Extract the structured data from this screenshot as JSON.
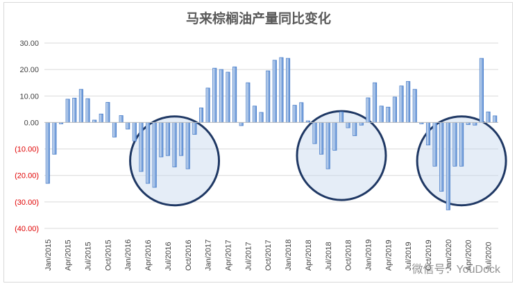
{
  "chart_data": {
    "type": "bar",
    "title": "马来棕榈油产量同比变化",
    "ylim": [
      -40,
      30
    ],
    "yticks": [
      30,
      20,
      10,
      0,
      -10,
      -20,
      -30,
      -40
    ],
    "ytick_labels": [
      "30.00",
      "20.00",
      "10.00",
      "0.00",
      "(10.00)",
      "(20.00)",
      "(30.00)",
      "(40.00)"
    ],
    "x_tick_labels": [
      "Jan/2015",
      "Apr/2015",
      "Jul/2015",
      "Oct/2015",
      "Jan/2016",
      "Apr/2016",
      "Jul/2016",
      "Oct/2016",
      "Jan/2017",
      "Apr/2017",
      "Jul/2017",
      "Oct/2017",
      "Jan/2018",
      "Apr/2018",
      "Jul/2018",
      "Oct/2018",
      "Jan/2019",
      "Apr/2019",
      "Jul/2019",
      "Oct/2019",
      "Jan/2020",
      "Apr/2020",
      "Jul/2020"
    ],
    "grid": true,
    "legend": "none",
    "series": [
      {
        "x": [
          "Jan/2015",
          "Feb/2015",
          "Mar/2015",
          "Apr/2015",
          "May/2015",
          "Jun/2015",
          "Jul/2015",
          "Aug/2015",
          "Sep/2015",
          "Oct/2015",
          "Nov/2015",
          "Dec/2015",
          "Jan/2016",
          "Feb/2016",
          "Mar/2016",
          "Apr/2016",
          "May/2016",
          "Jun/2016",
          "Jul/2016",
          "Aug/2016",
          "Sep/2016",
          "Oct/2016",
          "Nov/2016",
          "Dec/2016",
          "Jan/2017",
          "Feb/2017",
          "Mar/2017",
          "Apr/2017",
          "May/2017",
          "Jun/2017",
          "Jul/2017",
          "Aug/2017",
          "Sep/2017",
          "Oct/2017",
          "Nov/2017",
          "Dec/2017",
          "Jan/2018",
          "Feb/2018",
          "Mar/2018",
          "Apr/2018",
          "May/2018",
          "Jun/2018",
          "Jul/2018",
          "Aug/2018",
          "Sep/2018",
          "Oct/2018",
          "Nov/2018",
          "Dec/2018",
          "Jan/2019",
          "Feb/2019",
          "Mar/2019",
          "Apr/2019",
          "May/2019",
          "Jun/2019",
          "Jul/2019",
          "Aug/2019",
          "Sep/2019",
          "Oct/2019",
          "Nov/2019",
          "Dec/2019",
          "Jan/2020",
          "Feb/2020",
          "Mar/2020",
          "Apr/2020",
          "May/2020",
          "Jun/2020",
          "Jul/2020",
          "Aug/2020"
        ],
        "values": [
          -23.0,
          -12.0,
          -0.5,
          8.8,
          9.2,
          12.5,
          9.0,
          0.9,
          3.2,
          7.6,
          -5.5,
          2.6,
          -2.5,
          -7.0,
          -18.5,
          -23.0,
          -24.5,
          -13.0,
          -12.5,
          -16.8,
          -12.5,
          -17.5,
          -4.5,
          5.5,
          13.0,
          20.5,
          20.0,
          19.0,
          21.0,
          -1.2,
          15.0,
          6.2,
          3.8,
          19.5,
          23.5,
          24.5,
          24.2,
          6.5,
          7.5,
          0.6,
          -8.0,
          -12.0,
          -17.5,
          -10.5,
          4.0,
          -2.0,
          -5.0,
          -1.0,
          9.3,
          15.0,
          6.2,
          5.8,
          9.6,
          13.8,
          15.5,
          12.5,
          -0.5,
          -8.5,
          -16.5,
          -26.0,
          -33.0,
          -16.5,
          -16.5,
          -0.8,
          -1.0,
          24.2,
          4.0,
          2.5
        ]
      }
    ],
    "highlight_circles": [
      {
        "center": [
          "Aug/2016",
          -14.5
        ]
      },
      {
        "center": [
          "Sep/2018",
          -12.5
        ]
      },
      {
        "center": [
          "Mar/2020",
          -14.5
        ]
      }
    ],
    "colors": {
      "bar_fill_top": "#dce6f2",
      "bar_fill_bottom": "#5b8ed6",
      "bar_stroke": "#4a7ec9",
      "circle_fill": "#c6d6ee",
      "circle_stroke": "#1f3864",
      "negative_tick": "#e00000",
      "positive_tick": "#404040",
      "grid": "#d9d9d9"
    }
  },
  "watermark": "微信号：YouDock"
}
